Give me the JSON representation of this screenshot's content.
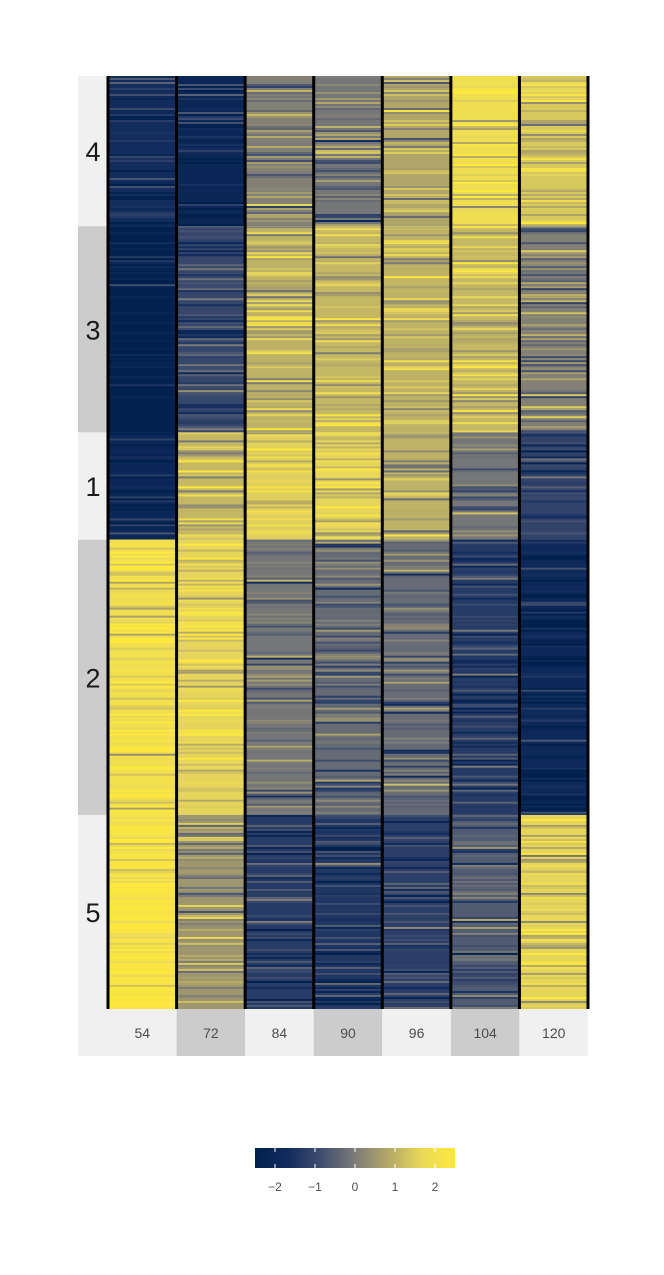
{
  "chart_data": {
    "type": "heatmap",
    "title": "",
    "xlabel": "",
    "ylabel": "",
    "columns": [
      "54",
      "72",
      "84",
      "90",
      "96",
      "104",
      "120"
    ],
    "clusters": [
      {
        "label": "4",
        "rows_fraction": 0.161,
        "column_means": [
          -1.7,
          -2.0,
          0.1,
          -0.1,
          0.8,
          1.9,
          1.4
        ]
      },
      {
        "label": "3",
        "rows_fraction": 0.221,
        "column_means": [
          -2.4,
          -1.0,
          1.0,
          1.1,
          1.0,
          1.1,
          0.1
        ]
      },
      {
        "label": "1",
        "rows_fraction": 0.115,
        "column_means": [
          -2.0,
          1.1,
          1.5,
          1.6,
          1.0,
          -0.1,
          -1.1
        ]
      },
      {
        "label": "2",
        "rows_fraction": 0.295,
        "column_means": [
          2.0,
          1.6,
          -0.1,
          -0.3,
          -0.3,
          -1.3,
          -1.9
        ]
      },
      {
        "label": "5",
        "rows_fraction": 0.208,
        "column_means": [
          2.3,
          0.5,
          -1.3,
          -1.4,
          -1.2,
          -0.6,
          1.6
        ]
      }
    ],
    "color_scale": {
      "min": -2.5,
      "max": 2.5,
      "colors": [
        "#00204d",
        "#122c5e",
        "#404e6f",
        "#7c7b78",
        "#b3a869",
        "#ead95a",
        "#fde93c"
      ],
      "ticks": [
        -2,
        -1,
        0,
        1,
        2
      ],
      "tick_labels": [
        "−2",
        "−1",
        "0",
        "1",
        "2"
      ]
    },
    "legend_position": "bottom"
  }
}
